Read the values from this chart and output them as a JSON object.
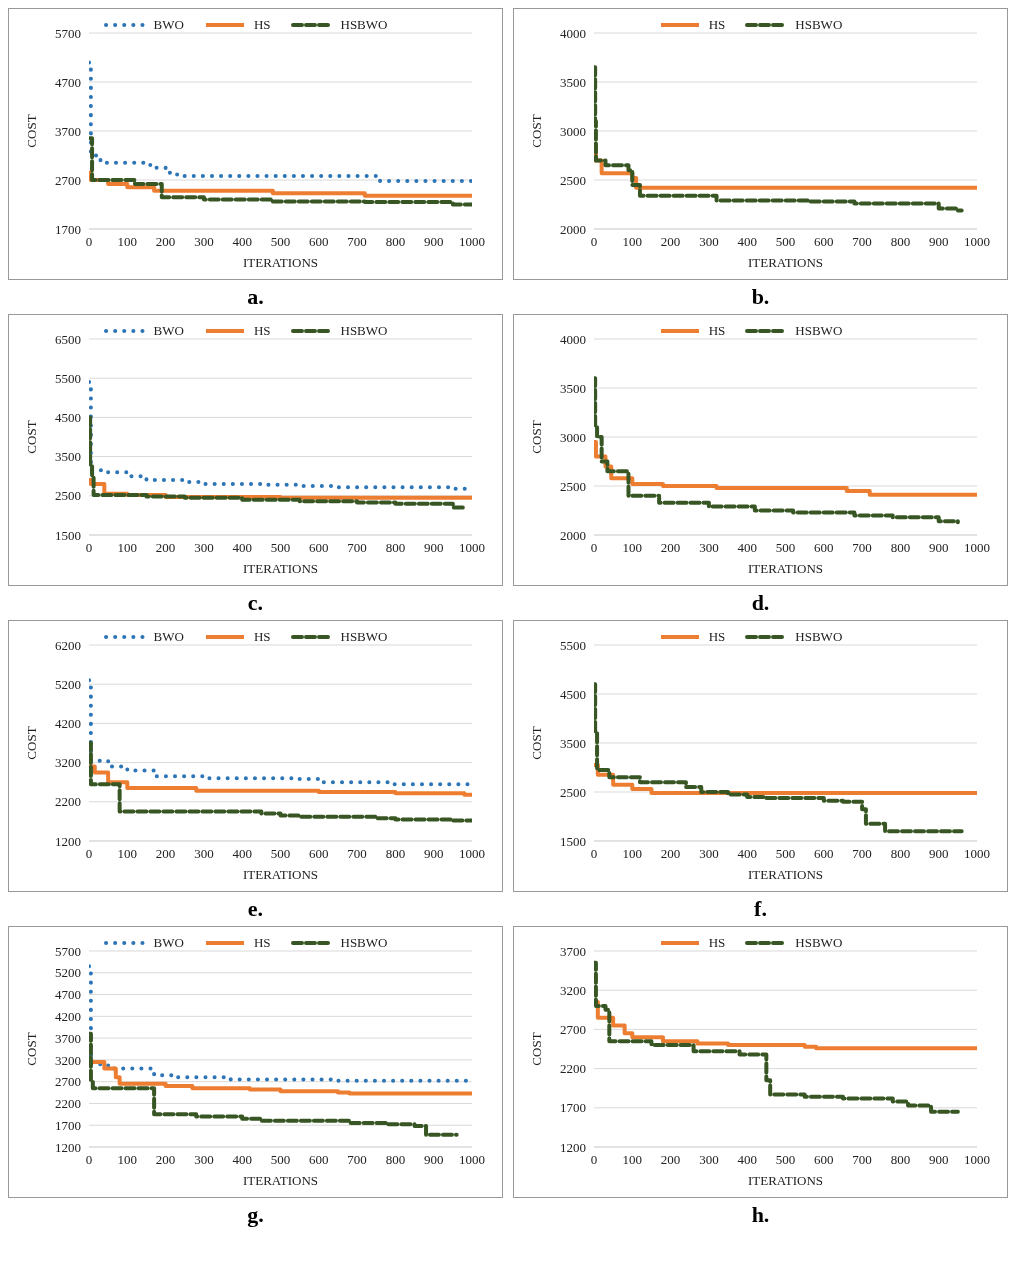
{
  "chart_data": [
    {
      "type": "step",
      "title": "a.",
      "xlabel": "ITERATIONS",
      "ylabel": "COST",
      "xlim": [
        0,
        1000
      ],
      "xticks": [
        0,
        100,
        200,
        300,
        400,
        500,
        600,
        700,
        800,
        900,
        1000
      ],
      "ylim": [
        1700,
        5700
      ],
      "yticks": [
        1700,
        2700,
        3700,
        4700,
        5700
      ],
      "grid": "y",
      "legend": "top",
      "marker": "none",
      "series": [
        {
          "name": "BWO",
          "color": "#2e75b6",
          "line_style": "dotted",
          "x": [
            0,
            5,
            30,
            160,
            200,
            230,
            730,
            760,
            1000
          ],
          "values": [
            5100,
            3200,
            3050,
            2950,
            2850,
            2780,
            2780,
            2680,
            2680
          ]
        },
        {
          "name": "HS",
          "color": "#ed7d31",
          "line_style": "solid",
          "x": [
            0,
            5,
            50,
            100,
            170,
            480,
            720,
            1000
          ],
          "values": [
            2850,
            2700,
            2620,
            2550,
            2480,
            2430,
            2380,
            2380
          ]
        },
        {
          "name": "HSBWO",
          "color": "#375623",
          "line_style": "dashed",
          "x": [
            0,
            8,
            120,
            190,
            300,
            480,
            720,
            950,
            1000
          ],
          "values": [
            3550,
            2700,
            2620,
            2350,
            2300,
            2260,
            2250,
            2200,
            2200
          ]
        }
      ]
    },
    {
      "type": "step",
      "title": "b.",
      "xlabel": "ITERATIONS",
      "ylabel": "COST",
      "xlim": [
        0,
        1000
      ],
      "xticks": [
        0,
        100,
        200,
        300,
        400,
        500,
        600,
        700,
        800,
        900,
        1000
      ],
      "ylim": [
        2000,
        4000
      ],
      "yticks": [
        2000,
        2500,
        3000,
        3500,
        4000
      ],
      "grid": "y",
      "legend": "top",
      "marker": "none",
      "series": [
        {
          "name": "HS",
          "color": "#ed7d31",
          "line_style": "solid",
          "x": [
            0,
            5,
            20,
            100,
            110,
            1000
          ],
          "values": [
            2850,
            2700,
            2570,
            2520,
            2420,
            2420
          ]
        },
        {
          "name": "HSBWO",
          "color": "#375623",
          "line_style": "dashed",
          "x": [
            0,
            3,
            5,
            30,
            90,
            100,
            120,
            320,
            560,
            680,
            900,
            950,
            960
          ],
          "values": [
            3650,
            3100,
            2700,
            2650,
            2600,
            2450,
            2340,
            2290,
            2280,
            2260,
            2210,
            2190,
            2190
          ]
        }
      ]
    },
    {
      "type": "step",
      "title": "c.",
      "xlabel": "ITERATIONS",
      "ylabel": "COST",
      "xlim": [
        0,
        1000
      ],
      "xticks": [
        0,
        100,
        200,
        300,
        400,
        500,
        600,
        700,
        800,
        900,
        1000
      ],
      "ylim": [
        1500,
        6500
      ],
      "yticks": [
        1500,
        2500,
        3500,
        4500,
        5500,
        6500
      ],
      "grid": "y",
      "legend": "top",
      "marker": "none",
      "series": [
        {
          "name": "BWO",
          "color": "#2e75b6",
          "line_style": "dotted",
          "x": [
            0,
            5,
            50,
            100,
            150,
            250,
            300,
            450,
            550,
            650,
            950,
            1000
          ],
          "values": [
            5400,
            3150,
            3100,
            3000,
            2900,
            2850,
            2800,
            2780,
            2750,
            2720,
            2680,
            2680
          ]
        },
        {
          "name": "HS",
          "color": "#ed7d31",
          "line_style": "solid",
          "x": [
            0,
            5,
            40,
            100,
            200,
            500,
            1000
          ],
          "values": [
            2900,
            2800,
            2550,
            2520,
            2470,
            2450,
            2420
          ]
        },
        {
          "name": "HSBWO",
          "color": "#375623",
          "line_style": "dashed",
          "x": [
            0,
            3,
            8,
            12,
            150,
            250,
            400,
            550,
            700,
            800,
            950,
            980
          ],
          "values": [
            4500,
            3300,
            3000,
            2520,
            2480,
            2450,
            2400,
            2360,
            2330,
            2300,
            2200,
            2200
          ]
        }
      ]
    },
    {
      "type": "step",
      "title": "d.",
      "xlabel": "ITERATIONS",
      "ylabel": "COST",
      "xlim": [
        0,
        1000
      ],
      "xticks": [
        0,
        100,
        200,
        300,
        400,
        500,
        600,
        700,
        800,
        900,
        1000
      ],
      "ylim": [
        2000,
        4000
      ],
      "yticks": [
        2000,
        2500,
        3000,
        3500,
        4000
      ],
      "grid": "y",
      "legend": "top",
      "marker": "none",
      "series": [
        {
          "name": "HS",
          "color": "#ed7d31",
          "line_style": "solid",
          "x": [
            0,
            5,
            30,
            45,
            100,
            180,
            320,
            660,
            720,
            1000
          ],
          "values": [
            2950,
            2800,
            2700,
            2580,
            2520,
            2500,
            2480,
            2450,
            2410,
            2410
          ]
        },
        {
          "name": "HSBWO",
          "color": "#375623",
          "line_style": "dashed",
          "x": [
            0,
            3,
            8,
            20,
            35,
            90,
            170,
            300,
            420,
            520,
            680,
            780,
            900,
            950
          ],
          "values": [
            3600,
            3100,
            3000,
            2750,
            2650,
            2400,
            2330,
            2290,
            2250,
            2230,
            2200,
            2180,
            2140,
            2130
          ]
        }
      ]
    },
    {
      "type": "step",
      "title": "e.",
      "xlabel": "ITERATIONS",
      "ylabel": "COST",
      "xlim": [
        0,
        1000
      ],
      "xticks": [
        0,
        100,
        200,
        300,
        400,
        500,
        600,
        700,
        800,
        900,
        1000
      ],
      "ylim": [
        1200,
        6200
      ],
      "yticks": [
        1200,
        2200,
        3200,
        4200,
        5200,
        6200
      ],
      "grid": "y",
      "legend": "top",
      "marker": "none",
      "series": [
        {
          "name": "BWO",
          "color": "#2e75b6",
          "line_style": "dotted",
          "x": [
            0,
            5,
            50,
            100,
            170,
            300,
            550,
            600,
            780,
            1000
          ],
          "values": [
            5300,
            3250,
            3100,
            3000,
            2850,
            2800,
            2780,
            2700,
            2650,
            2650
          ]
        },
        {
          "name": "HS",
          "color": "#ed7d31",
          "line_style": "solid",
          "x": [
            0,
            15,
            50,
            100,
            280,
            600,
            800,
            980,
            1000
          ],
          "values": [
            3100,
            2950,
            2700,
            2550,
            2480,
            2450,
            2420,
            2380,
            2380
          ]
        },
        {
          "name": "HSBWO",
          "color": "#375623",
          "line_style": "dashed",
          "x": [
            0,
            5,
            80,
            450,
            500,
            550,
            750,
            800,
            950,
            1000
          ],
          "values": [
            3700,
            2650,
            1950,
            1900,
            1850,
            1820,
            1780,
            1750,
            1720,
            1720
          ]
        }
      ]
    },
    {
      "type": "step",
      "title": "f.",
      "xlabel": "ITERATIONS",
      "ylabel": "COST",
      "xlim": [
        0,
        1000
      ],
      "xticks": [
        0,
        100,
        200,
        300,
        400,
        500,
        600,
        700,
        800,
        900,
        1000
      ],
      "ylim": [
        1500,
        5500
      ],
      "yticks": [
        1500,
        2500,
        3500,
        4500,
        5500
      ],
      "grid": "y",
      "legend": "top",
      "marker": "none",
      "series": [
        {
          "name": "HS",
          "color": "#ed7d31",
          "line_style": "solid",
          "x": [
            0,
            10,
            50,
            100,
            150,
            1000
          ],
          "values": [
            3050,
            2850,
            2650,
            2560,
            2480,
            2480
          ]
        },
        {
          "name": "HSBWO",
          "color": "#375623",
          "line_style": "dashed",
          "x": [
            0,
            3,
            8,
            40,
            120,
            240,
            280,
            350,
            400,
            450,
            600,
            650,
            700,
            710,
            760,
            960
          ],
          "values": [
            4700,
            3700,
            2950,
            2800,
            2700,
            2600,
            2500,
            2450,
            2400,
            2380,
            2320,
            2300,
            2150,
            1850,
            1700,
            1700
          ]
        }
      ]
    },
    {
      "type": "step",
      "title": "g.",
      "xlabel": "ITERATIONS",
      "ylabel": "COST",
      "xlim": [
        0,
        1000
      ],
      "xticks": [
        0,
        100,
        200,
        300,
        400,
        500,
        600,
        700,
        800,
        900,
        1000
      ],
      "ylim": [
        1200,
        5700
      ],
      "yticks": [
        1200,
        1700,
        2200,
        2700,
        3200,
        3700,
        4200,
        4700,
        5200,
        5700
      ],
      "grid": "y",
      "legend": "top",
      "marker": "none",
      "series": [
        {
          "name": "BWO",
          "color": "#2e75b6",
          "line_style": "dotted",
          "x": [
            0,
            5,
            50,
            170,
            220,
            370,
            650,
            1000
          ],
          "values": [
            5350,
            3100,
            3000,
            2850,
            2800,
            2750,
            2720,
            2720
          ]
        },
        {
          "name": "HS",
          "color": "#ed7d31",
          "line_style": "solid",
          "x": [
            0,
            40,
            70,
            80,
            200,
            270,
            420,
            500,
            650,
            680,
            1000
          ],
          "values": [
            3150,
            3000,
            2800,
            2650,
            2600,
            2550,
            2520,
            2480,
            2450,
            2430,
            2430
          ]
        },
        {
          "name": "HSBWO",
          "color": "#375623",
          "line_style": "dashed",
          "x": [
            0,
            5,
            10,
            170,
            280,
            400,
            450,
            680,
            780,
            850,
            880,
            960
          ],
          "values": [
            3800,
            2700,
            2550,
            1950,
            1900,
            1850,
            1800,
            1750,
            1720,
            1680,
            1480,
            1480
          ]
        }
      ]
    },
    {
      "type": "step",
      "title": "h.",
      "xlabel": "ITERATIONS",
      "ylabel": "COST",
      "xlim": [
        0,
        1000
      ],
      "xticks": [
        0,
        100,
        200,
        300,
        400,
        500,
        600,
        700,
        800,
        900,
        1000
      ],
      "ylim": [
        1200,
        3700
      ],
      "yticks": [
        1200,
        1700,
        2200,
        2700,
        3200,
        3700
      ],
      "grid": "y",
      "legend": "top",
      "marker": "none",
      "series": [
        {
          "name": "HS",
          "color": "#ed7d31",
          "line_style": "solid",
          "x": [
            0,
            10,
            50,
            80,
            100,
            180,
            270,
            350,
            550,
            580,
            1000
          ],
          "values": [
            3050,
            2850,
            2750,
            2650,
            2600,
            2550,
            2520,
            2500,
            2480,
            2460,
            2460
          ]
        },
        {
          "name": "HSBWO",
          "color": "#375623",
          "line_style": "dashed",
          "x": [
            0,
            5,
            30,
            40,
            150,
            260,
            380,
            450,
            460,
            550,
            650,
            780,
            820,
            880,
            950
          ],
          "values": [
            3550,
            3000,
            2950,
            2550,
            2500,
            2420,
            2380,
            2050,
            1870,
            1840,
            1820,
            1780,
            1730,
            1650,
            1650
          ]
        }
      ]
    }
  ]
}
